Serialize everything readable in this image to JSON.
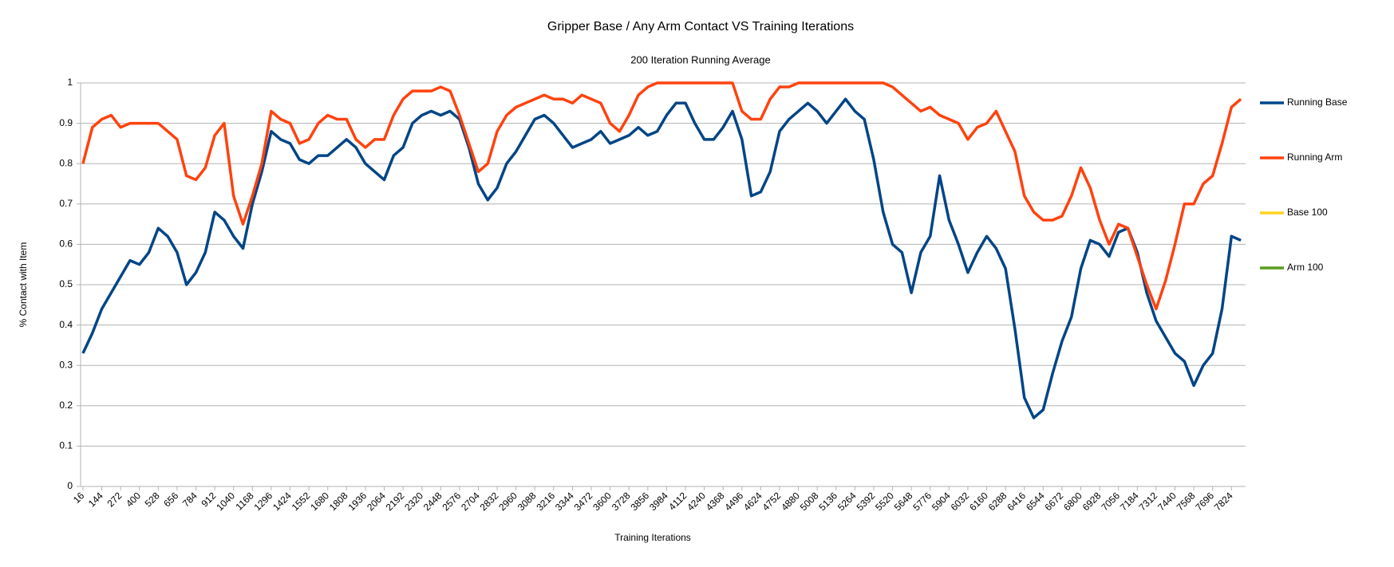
{
  "chart_data": {
    "type": "line",
    "title": "Gripper Base / Any Arm Contact VS Training Iterations",
    "subtitle": "200 Iteration Running Average",
    "x_label": "Training Iterations",
    "y_label": "% Contact with Item",
    "x": [
      16,
      80,
      144,
      208,
      272,
      336,
      400,
      464,
      528,
      592,
      656,
      720,
      784,
      848,
      912,
      976,
      1040,
      1104,
      1168,
      1232,
      1296,
      1360,
      1424,
      1488,
      1552,
      1616,
      1680,
      1744,
      1808,
      1872,
      1936,
      2000,
      2064,
      2128,
      2192,
      2256,
      2320,
      2384,
      2448,
      2512,
      2576,
      2640,
      2704,
      2768,
      2832,
      2896,
      2960,
      3024,
      3088,
      3152,
      3216,
      3280,
      3344,
      3408,
      3472,
      3536,
      3600,
      3664,
      3728,
      3792,
      3856,
      3920,
      3984,
      4048,
      4112,
      4176,
      4240,
      4304,
      4368,
      4432,
      4496,
      4560,
      4624,
      4688,
      4752,
      4816,
      4880,
      4944,
      5008,
      5072,
      5136,
      5200,
      5264,
      5328,
      5392,
      5456,
      5520,
      5584,
      5648,
      5712,
      5776,
      5840,
      5904,
      5968,
      6032,
      6096,
      6160,
      6224,
      6288,
      6352,
      6416,
      6480,
      6544,
      6608,
      6672,
      6736,
      6800,
      6864,
      6928,
      6992,
      7056,
      7120,
      7184,
      7248,
      7312,
      7376,
      7440,
      7504,
      7568,
      7632,
      7696,
      7760,
      7824,
      7888
    ],
    "series": [
      {
        "name": "Running Base",
        "color": "#004586",
        "values": [
          0.33,
          0.38,
          0.44,
          0.48,
          0.52,
          0.56,
          0.55,
          0.58,
          0.64,
          0.62,
          0.58,
          0.5,
          0.53,
          0.58,
          0.68,
          0.66,
          0.62,
          0.59,
          0.7,
          0.78,
          0.88,
          0.86,
          0.85,
          0.81,
          0.8,
          0.82,
          0.82,
          0.84,
          0.86,
          0.84,
          0.8,
          0.78,
          0.76,
          0.82,
          0.84,
          0.9,
          0.92,
          0.93,
          0.92,
          0.93,
          0.91,
          0.84,
          0.75,
          0.71,
          0.74,
          0.8,
          0.83,
          0.87,
          0.91,
          0.92,
          0.9,
          0.87,
          0.84,
          0.85,
          0.86,
          0.88,
          0.85,
          0.86,
          0.87,
          0.89,
          0.87,
          0.88,
          0.92,
          0.95,
          0.95,
          0.9,
          0.86,
          0.86,
          0.89,
          0.93,
          0.86,
          0.72,
          0.73,
          0.78,
          0.88,
          0.91,
          0.93,
          0.95,
          0.93,
          0.9,
          0.93,
          0.96,
          0.93,
          0.91,
          0.81,
          0.68,
          0.6,
          0.58,
          0.48,
          0.58,
          0.62,
          0.77,
          0.66,
          0.6,
          0.53,
          0.58,
          0.62,
          0.59,
          0.54,
          0.39,
          0.22,
          0.17,
          0.19,
          0.28,
          0.36,
          0.42,
          0.54,
          0.61,
          0.6,
          0.57,
          0.63,
          0.64,
          0.58,
          0.48,
          0.41,
          0.37,
          0.33,
          0.31,
          0.25,
          0.3,
          0.33,
          0.44,
          0.62,
          0.61
        ]
      },
      {
        "name": "Running Arm",
        "color": "#ff420e",
        "values": [
          0.8,
          0.89,
          0.91,
          0.92,
          0.89,
          0.9,
          0.9,
          0.9,
          0.9,
          0.88,
          0.86,
          0.77,
          0.76,
          0.79,
          0.87,
          0.9,
          0.72,
          0.65,
          0.72,
          0.8,
          0.93,
          0.91,
          0.9,
          0.85,
          0.86,
          0.9,
          0.92,
          0.91,
          0.91,
          0.86,
          0.84,
          0.86,
          0.86,
          0.92,
          0.96,
          0.98,
          0.98,
          0.98,
          0.99,
          0.98,
          0.92,
          0.85,
          0.78,
          0.8,
          0.88,
          0.92,
          0.94,
          0.95,
          0.96,
          0.97,
          0.96,
          0.96,
          0.95,
          0.97,
          0.96,
          0.95,
          0.9,
          0.88,
          0.92,
          0.97,
          0.99,
          1,
          1,
          1,
          1,
          1,
          1,
          1,
          1,
          1,
          0.93,
          0.91,
          0.91,
          0.96,
          0.99,
          0.99,
          1,
          1,
          1,
          1,
          1,
          1,
          1,
          1,
          1,
          1,
          0.99,
          0.97,
          0.95,
          0.93,
          0.94,
          0.92,
          0.91,
          0.9,
          0.86,
          0.89,
          0.9,
          0.93,
          0.88,
          0.83,
          0.72,
          0.68,
          0.66,
          0.66,
          0.67,
          0.72,
          0.79,
          0.74,
          0.66,
          0.6,
          0.65,
          0.64,
          0.57,
          0.5,
          0.44,
          0.51,
          0.6,
          0.7,
          0.7,
          0.75,
          0.77,
          0.85,
          0.94,
          0.96
        ]
      },
      {
        "name": "Base 100",
        "color": "#ffd320"
      },
      {
        "name": "Arm 100",
        "color": "#579d1c"
      }
    ],
    "xlim": [
      0,
      7920
    ],
    "xticks": [
      16,
      144,
      272,
      400,
      528,
      656,
      784,
      912,
      1040,
      1168,
      1296,
      1424,
      1552,
      1680,
      1808,
      1936,
      2064,
      2192,
      2320,
      2448,
      2576,
      2704,
      2832,
      2960,
      3088,
      3216,
      3344,
      3472,
      3600,
      3728,
      3856,
      3984,
      4112,
      4240,
      4368,
      4496,
      4624,
      4752,
      4880,
      5008,
      5136,
      5264,
      5392,
      5520,
      5648,
      5776,
      5904,
      6032,
      6160,
      6288,
      6416,
      6544,
      6672,
      6800,
      6928,
      7056,
      7184,
      7312,
      7440,
      7568,
      7696,
      7824
    ],
    "ylim": [
      0,
      1
    ],
    "yticks": [
      0,
      0.1,
      0.2,
      0.3,
      0.4,
      0.5,
      0.6,
      0.7,
      0.8,
      0.9,
      1
    ],
    "grid": true,
    "legend": "right"
  }
}
